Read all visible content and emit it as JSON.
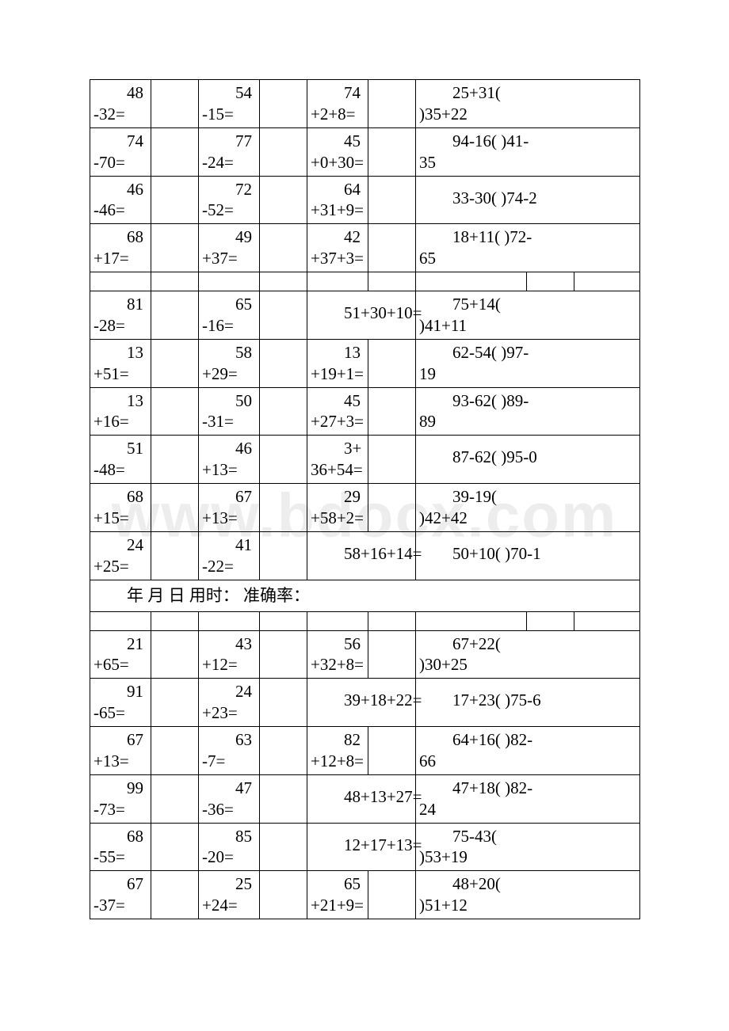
{
  "watermark": "www.bdocx.com",
  "header_text": "年 月 日 用时：  准确率：",
  "col_widths": {
    "c1": 77,
    "c2": 60,
    "c3": 77,
    "c4": 60,
    "c5": 77,
    "c6": 60,
    "c7": 140,
    "c8": 60,
    "c9": 83
  },
  "rows": [
    {
      "type": "data",
      "c1": "48\n-32=",
      "c3": "54\n-15=",
      "c5": "74\n+2+8=",
      "c7_colspan": 1,
      "c7": "",
      "c8": "25+31(\n)35+22",
      "c8_colspan": 2
    },
    {
      "type": "data",
      "c1": "74\n-70=",
      "c3": "77\n-24=",
      "c5": "45\n+0+30=",
      "c7_colspan": 1,
      "c7": "",
      "c8": "94-16( )41-\n35",
      "c8_colspan": 2
    },
    {
      "type": "data",
      "c1": "46\n-46=",
      "c3": "72\n-52=",
      "c5": "64\n+31+9=",
      "c7_colspan": 1,
      "c7": "",
      "c8": "33-30( )74-2",
      "c8_colspan": 2,
      "c8_single": true
    },
    {
      "type": "data",
      "c1": "68\n+17=",
      "c3": "49\n+37=",
      "c5": "42\n+37+3=",
      "c7_colspan": 1,
      "c7": "",
      "c8": "18+11( )72-\n65",
      "c8_colspan": 2
    },
    {
      "type": "spacer"
    },
    {
      "type": "data",
      "c1": "81\n-28=",
      "c3": "65\n-16=",
      "c5": "51+30+10=",
      "c5_colspan": 2,
      "c5_single": true,
      "c8": "75+14(\n)41+11",
      "c8_colspan": 2
    },
    {
      "type": "data",
      "c1": "13\n+51=",
      "c3": "58\n+29=",
      "c5": "13\n+19+1=",
      "c7_colspan": 1,
      "c7": "",
      "c8": "62-54( )97-\n19",
      "c8_colspan": 2
    },
    {
      "type": "data",
      "c1": "13\n+16=",
      "c3": "50\n-31=",
      "c5": "45\n+27+3=",
      "c7_colspan": 1,
      "c7": "",
      "c8": "93-62( )89-\n89",
      "c8_colspan": 2
    },
    {
      "type": "data",
      "c1": "51\n-48=",
      "c3": "46\n+13=",
      "c5": "3+\n36+54=",
      "c7_colspan": 1,
      "c7": "",
      "c8": "87-62( )95-0",
      "c8_colspan": 2,
      "c8_single": true
    },
    {
      "type": "data",
      "c1": "68\n+15=",
      "c3": "67\n+13=",
      "c5": "29\n+58+2=",
      "c7_colspan": 1,
      "c7": "",
      "c8": "39-19(\n)42+42",
      "c8_colspan": 2
    },
    {
      "type": "data",
      "c1": "24\n+25=",
      "c3": "41\n-22=",
      "c5": "58+16+14=",
      "c5_colspan": 2,
      "c5_single": true,
      "c8": "50+10( )70-1",
      "c8_colspan": 2,
      "c8_single": true
    },
    {
      "type": "header"
    },
    {
      "type": "spacer"
    },
    {
      "type": "data",
      "c1": "21\n+65=",
      "c3": "43\n+12=",
      "c5": "56\n+32+8=",
      "c7_colspan": 1,
      "c7": "",
      "c8": "67+22(\n)30+25",
      "c8_colspan": 2
    },
    {
      "type": "data",
      "c1": "91\n-65=",
      "c3": "24\n+23=",
      "c5": "39+18+22=",
      "c5_colspan": 2,
      "c5_single": true,
      "c8": "17+23( )75-6",
      "c8_colspan": 2,
      "c8_single": true
    },
    {
      "type": "data",
      "c1": "67\n+13=",
      "c3": "63\n-7=",
      "c5": "82\n+12+8=",
      "c7_colspan": 1,
      "c7": "",
      "c8": "64+16( )82-\n66",
      "c8_colspan": 2
    },
    {
      "type": "data",
      "c1": "99\n-73=",
      "c3": "47\n-36=",
      "c5": "48+13+27=",
      "c5_colspan": 2,
      "c5_single": true,
      "c8": "47+18( )82-\n24",
      "c8_colspan": 2
    },
    {
      "type": "data",
      "c1": "68\n-55=",
      "c3": "85\n-20=",
      "c5": "12+17+13=",
      "c5_colspan": 2,
      "c5_single": true,
      "c8": "75-43(\n)53+19",
      "c8_colspan": 2
    },
    {
      "type": "data",
      "c1": "67\n-37=",
      "c3": "25\n+24=",
      "c5": "65\n+21+9=",
      "c7_colspan": 1,
      "c7": "",
      "c8": "48+20(\n)51+12",
      "c8_colspan": 2
    }
  ]
}
